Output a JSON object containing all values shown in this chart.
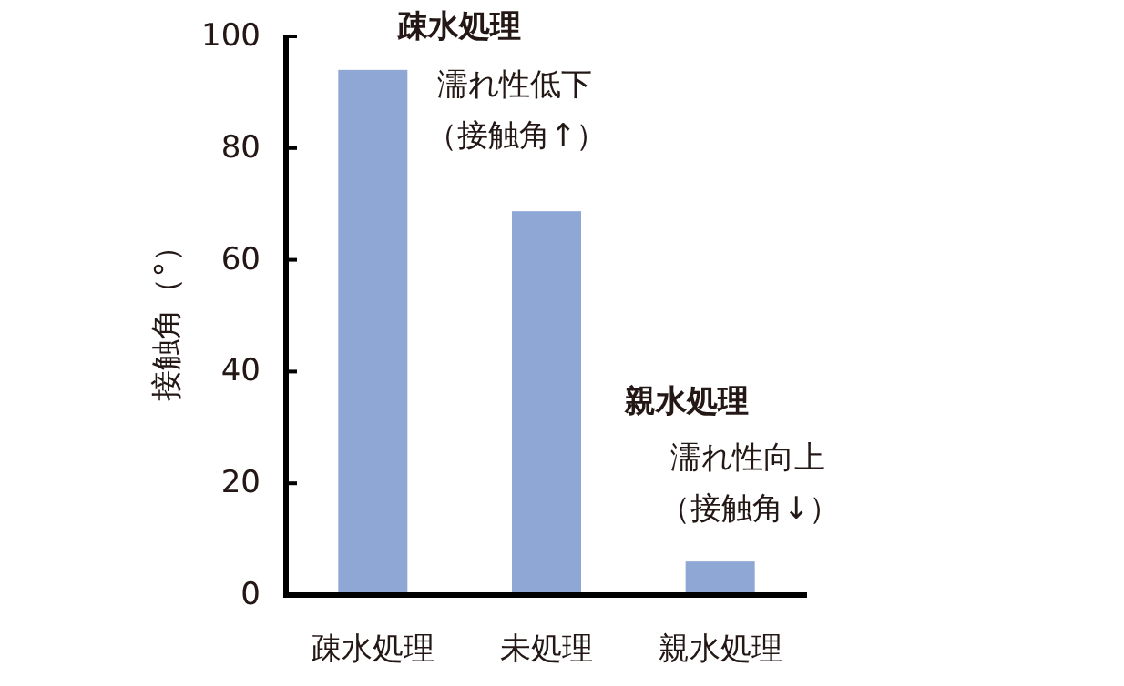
{
  "chart_data": {
    "type": "bar",
    "ylabel": "接触角（°）",
    "categories": [
      "疎水処理",
      "未処理",
      "親水処理"
    ],
    "values": [
      94,
      68.7,
      6
    ],
    "color": "#8ea7d4",
    "ylim": [
      0,
      100
    ],
    "yticks": [
      0,
      20,
      40,
      60,
      80,
      100
    ],
    "grid": false,
    "annotations": [
      "疎水処理",
      "濡れ性低下",
      "（接触角↑）",
      "親水処理",
      "濡れ性向上",
      "（接触角↓）"
    ]
  }
}
